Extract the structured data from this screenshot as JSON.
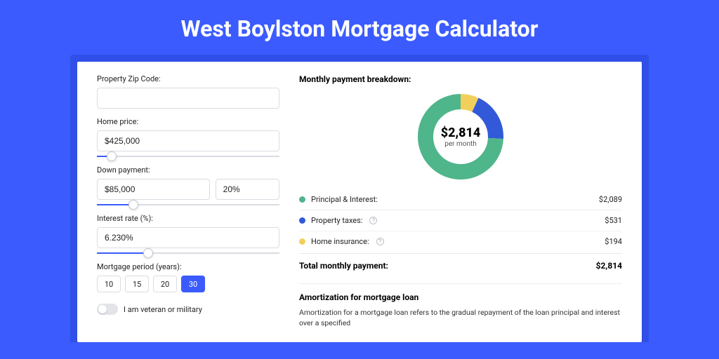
{
  "page": {
    "title": "West Boylston Mortgage Calculator",
    "bg_color": "#3b5bff",
    "wrap_color": "#2f4fe8",
    "card_bg": "#ffffff"
  },
  "form": {
    "zip": {
      "label": "Property Zip Code:",
      "value": ""
    },
    "price": {
      "label": "Home price:",
      "value": "$425,000",
      "slider_pct": 8
    },
    "down": {
      "label": "Down payment:",
      "value": "$85,000",
      "pct_value": "20%",
      "slider_pct": 20
    },
    "rate": {
      "label": "Interest rate (%):",
      "value": "6.230%",
      "slider_pct": 28
    },
    "period": {
      "label": "Mortgage period (years):",
      "options": [
        "10",
        "15",
        "20",
        "30"
      ],
      "active_index": 3
    },
    "veteran": {
      "label": "I am veteran or military",
      "on": false
    }
  },
  "breakdown": {
    "title": "Monthly payment breakdown:",
    "center_amount": "$2,814",
    "center_sub": "per month",
    "items": [
      {
        "label": "Principal & Interest:",
        "amount": "$2,089",
        "color": "#4fb58a",
        "value": 2089,
        "info": false
      },
      {
        "label": "Property taxes:",
        "amount": "$531",
        "color": "#3159d8",
        "value": 531,
        "info": true
      },
      {
        "label": "Home insurance:",
        "amount": "$194",
        "color": "#f2cf5b",
        "value": 194,
        "info": true
      }
    ],
    "total_label": "Total monthly payment:",
    "total_amount": "$2,814",
    "donut": {
      "radius": 50,
      "stroke": 22,
      "bg": "#ffffff"
    }
  },
  "amort": {
    "title": "Amortization for mortgage loan",
    "text": "Amortization for a mortgage loan refers to the gradual repayment of the loan principal and interest over a specified"
  }
}
